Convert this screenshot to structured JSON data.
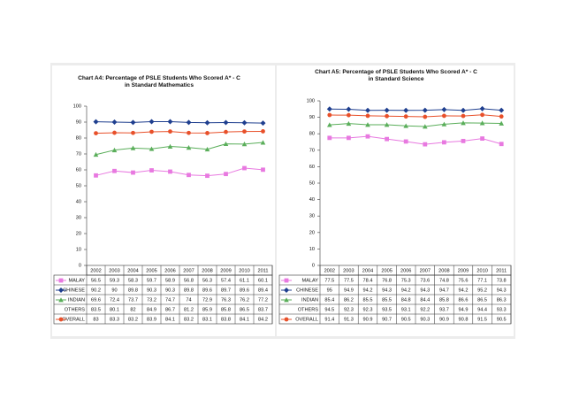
{
  "chart_data": [
    {
      "type": "line",
      "title_lines": [
        "Chart A4:  Percentage of PSLE Students Who Scored A* - C",
        "in Standard Mathematics"
      ],
      "categories": [
        "2002",
        "2003",
        "2004",
        "2005",
        "2006",
        "2007",
        "2008",
        "2009",
        "2010",
        "2011"
      ],
      "ylim": [
        0,
        100
      ],
      "yticks": [
        0,
        10,
        20,
        30,
        40,
        50,
        60,
        70,
        80,
        90,
        100
      ],
      "series": [
        {
          "name": "MALAY",
          "color": "#e879e0",
          "marker": "square",
          "values": [
            56.5,
            59.3,
            58.3,
            59.7,
            58.9,
            56.8,
            56.3,
            57.4,
            61.1,
            60.1
          ]
        },
        {
          "name": "CHINESE",
          "color": "#1f3f8f",
          "marker": "diamond",
          "values": [
            90.2,
            90.0,
            89.8,
            90.3,
            90.3,
            89.8,
            89.6,
            89.7,
            89.6,
            89.4
          ]
        },
        {
          "name": "INDIAN",
          "color": "#5aae5a",
          "marker": "triangle",
          "values": [
            69.6,
            72.4,
            73.7,
            73.2,
            74.7,
            74.0,
            72.9,
            76.3,
            76.2,
            77.2
          ]
        },
        {
          "name": "OTHERS",
          "values": [
            83.5,
            80.1,
            82.0,
            84.9,
            86.7,
            81.2,
            85.9,
            85.8,
            86.5,
            83.7
          ]
        },
        {
          "name": "OVERALL",
          "color": "#e8502a",
          "marker": "circle",
          "values": [
            83.0,
            83.3,
            83.2,
            83.9,
            84.1,
            83.2,
            83.1,
            83.8,
            84.1,
            84.2
          ]
        }
      ]
    },
    {
      "type": "line",
      "title_lines": [
        "Chart A5:  Percentage of PSLE Students Who Scored A* - C",
        "in Standard Science"
      ],
      "categories": [
        "2002",
        "2003",
        "2004",
        "2005",
        "2006",
        "2007",
        "2008",
        "2009",
        "2010",
        "2011"
      ],
      "ylim": [
        0,
        100
      ],
      "yticks": [
        0,
        10,
        20,
        30,
        40,
        50,
        60,
        70,
        80,
        90,
        100
      ],
      "series": [
        {
          "name": "MALAY",
          "color": "#e879e0",
          "marker": "square",
          "values": [
            77.5,
            77.5,
            78.4,
            76.8,
            75.3,
            73.6,
            74.8,
            75.6,
            77.1,
            73.8
          ]
        },
        {
          "name": "CHINESE",
          "color": "#1f3f8f",
          "marker": "diamond",
          "values": [
            95.0,
            94.9,
            94.2,
            94.3,
            94.2,
            94.3,
            94.7,
            94.2,
            95.2,
            94.3
          ]
        },
        {
          "name": "INDIAN",
          "color": "#5aae5a",
          "marker": "triangle",
          "values": [
            85.4,
            86.2,
            85.5,
            85.5,
            84.8,
            84.4,
            85.8,
            86.6,
            86.5,
            86.3
          ]
        },
        {
          "name": "OTHERS",
          "values": [
            94.5,
            92.3,
            92.3,
            93.5,
            93.1,
            92.2,
            93.7,
            94.9,
            94.4,
            93.3
          ]
        },
        {
          "name": "OVERALL",
          "color": "#e8502a",
          "marker": "circle",
          "values": [
            91.4,
            91.3,
            90.9,
            90.7,
            90.5,
            90.3,
            90.9,
            90.8,
            91.5,
            90.5
          ]
        }
      ]
    }
  ]
}
